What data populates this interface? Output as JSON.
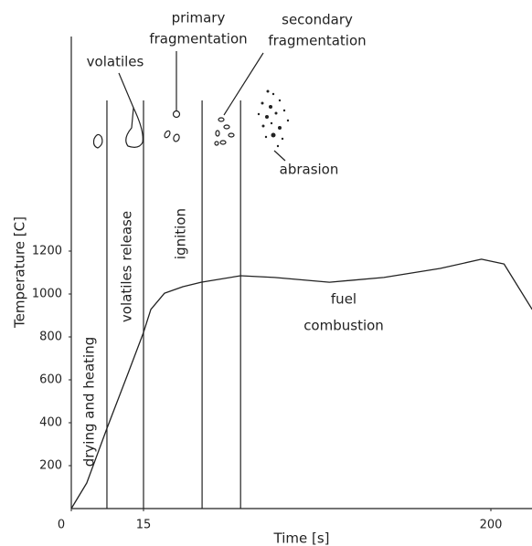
{
  "chart_data": {
    "type": "line",
    "x_label": "Time [s]",
    "y_label": "Temperature [C]",
    "x": [
      0,
      3.2,
      7.4,
      11.8,
      15,
      18.9,
      26.2,
      36,
      45.7,
      66.7,
      84.8,
      114,
      143,
      173,
      195,
      207,
      222
    ],
    "series": [
      {
        "color": "#222222",
        "values": [
          0,
          119,
          374,
          630,
          821,
          928,
          1004,
          1034,
          1055,
          1085,
          1077,
          1055,
          1077,
          1119,
          1162,
          1140,
          928
        ]
      }
    ],
    "xlim": [
      0,
      222
    ],
    "xticks": [
      0,
      15,
      200
    ],
    "ylim": [
      0,
      2200
    ],
    "yticks": [
      200,
      400,
      600,
      800,
      1000,
      1200
    ],
    "phase_lines": [
      7.4,
      15,
      46.2,
      66.7
    ],
    "phase_labels": [
      "drying and heating",
      "volatiles release",
      "ignition"
    ],
    "region_label": [
      "fuel",
      "combustion"
    ],
    "annotations": [
      [
        "volatiles"
      ],
      [
        "primary",
        "fragmentation"
      ],
      [
        "secondary",
        "fragmentation"
      ],
      [
        "abrasion"
      ]
    ]
  }
}
